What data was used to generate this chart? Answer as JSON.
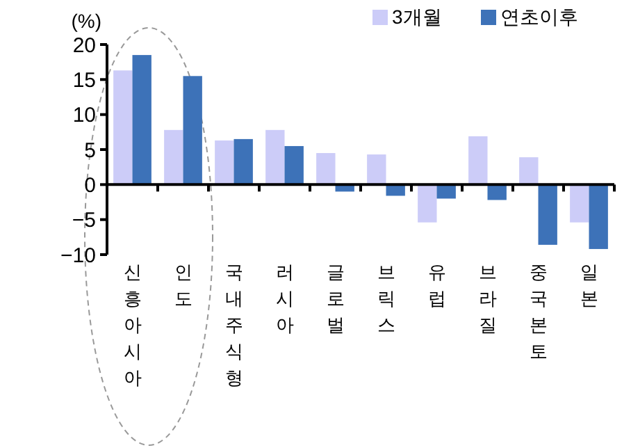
{
  "chart_data": {
    "type": "bar",
    "ylabel": "(%)",
    "categories": [
      "신흥아시아",
      "인도",
      "국내주식형",
      "러시아",
      "글로벌",
      "브릭스",
      "유럽",
      "브라질",
      "중국본토",
      "일본"
    ],
    "series": [
      {
        "name": "3개월",
        "color": "#ccccf8",
        "values": [
          16.3,
          7.8,
          6.3,
          7.8,
          4.5,
          4.3,
          -5.4,
          6.9,
          3.9,
          -5.4
        ]
      },
      {
        "name": "연초이후",
        "color": "#3d72b8",
        "values": [
          18.5,
          15.5,
          6.5,
          5.5,
          -1.0,
          -1.6,
          -2.0,
          -2.2,
          -8.6,
          -9.2
        ]
      }
    ],
    "ylim": [
      -10,
      20
    ],
    "yticks": [
      {
        "value": -10,
        "label": "−10"
      },
      {
        "value": -5,
        "label": "−5"
      },
      0,
      5,
      10,
      15,
      20
    ],
    "legend": "top right"
  }
}
